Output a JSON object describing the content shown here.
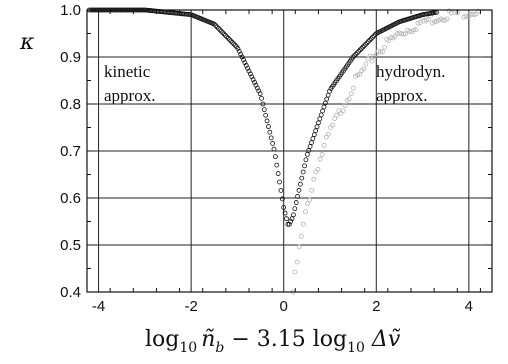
{
  "chart_data": {
    "type": "scatter",
    "ylabel": "κ",
    "xlabel": {
      "log1": "log",
      "sub1": "10",
      "var1": "ñ",
      "sub_b": "b",
      "mid": " − 3.15 log",
      "sub2": "10",
      "var2": " Δṽ"
    },
    "xlim": [
      -4.25,
      4.5
    ],
    "ylim": [
      0.4,
      1.0
    ],
    "xticks": [
      -4,
      -2,
      0,
      2,
      4
    ],
    "yticks": [
      0.4,
      0.5,
      0.6,
      0.7,
      0.8,
      0.9,
      1.0
    ],
    "xtick_labels": [
      "-4",
      "-2",
      "0",
      "2",
      "4"
    ],
    "ytick_labels": [
      "0.4",
      "0.5",
      "0.6",
      "0.7",
      "0.8",
      "0.9",
      "1.0"
    ],
    "grid": true,
    "annotations": [
      {
        "line1": "kinetic",
        "line2": "approx."
      },
      {
        "line1": "hydrodyn.",
        "line2": "approx."
      }
    ],
    "series": [
      {
        "style": "black open circles (dense)",
        "color": "#111111",
        "x": [
          -4.2,
          -3.0,
          -2.0,
          -1.5,
          -1.0,
          -0.5,
          -0.2,
          0.0,
          0.1,
          0.2,
          0.5,
          1.0,
          1.5,
          2.0,
          2.5,
          3.0,
          3.3
        ],
        "y": [
          1.0,
          1.0,
          0.99,
          0.97,
          0.92,
          0.82,
          0.7,
          0.58,
          0.54,
          0.56,
          0.69,
          0.83,
          0.9,
          0.95,
          0.975,
          0.99,
          0.995
        ]
      },
      {
        "style": "grey open circles (scattered)",
        "color": "#b4b4b4",
        "x": [
          0.2,
          0.3,
          0.5,
          0.7,
          1.0,
          1.5,
          2.0,
          2.5,
          3.0,
          3.5,
          4.0,
          4.4
        ],
        "y": [
          0.4,
          0.47,
          0.58,
          0.66,
          0.74,
          0.84,
          0.91,
          0.95,
          0.975,
          0.99,
          0.997,
          1.0
        ]
      }
    ]
  }
}
